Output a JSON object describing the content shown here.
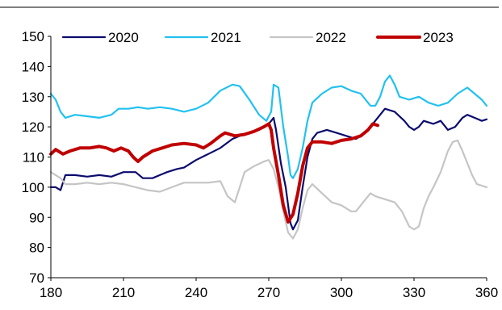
{
  "chart_data": {
    "type": "line",
    "title": "",
    "xlabel": "",
    "ylabel": "",
    "xlim": [
      180,
      360
    ],
    "ylim": [
      70,
      150
    ],
    "x_ticks": [
      180,
      210,
      240,
      270,
      300,
      330,
      360
    ],
    "y_ticks": [
      70,
      80,
      90,
      100,
      110,
      120,
      130,
      140,
      150
    ],
    "grid": false,
    "legend_position": "top",
    "series": [
      {
        "name": "2020",
        "color": "#0b0b6e",
        "width": 2.2,
        "points": [
          [
            180,
            100
          ],
          [
            182,
            100
          ],
          [
            184,
            99
          ],
          [
            186,
            104
          ],
          [
            190,
            104
          ],
          [
            195,
            103.5
          ],
          [
            200,
            104
          ],
          [
            205,
            103.5
          ],
          [
            210,
            105
          ],
          [
            215,
            105
          ],
          [
            218,
            103
          ],
          [
            222,
            103
          ],
          [
            225,
            104
          ],
          [
            228,
            105
          ],
          [
            232,
            106
          ],
          [
            235,
            106.5
          ],
          [
            240,
            109
          ],
          [
            245,
            111
          ],
          [
            250,
            113
          ],
          [
            255,
            116
          ],
          [
            258,
            117
          ],
          [
            262,
            118
          ],
          [
            266,
            119
          ],
          [
            270,
            121
          ],
          [
            272,
            123
          ],
          [
            273,
            119
          ],
          [
            275,
            108
          ],
          [
            277,
            100
          ],
          [
            279,
            88
          ],
          [
            280,
            86
          ],
          [
            282,
            89
          ],
          [
            284,
            100
          ],
          [
            286,
            110
          ],
          [
            288,
            116
          ],
          [
            290,
            118
          ],
          [
            294,
            119
          ],
          [
            298,
            118
          ],
          [
            302,
            117
          ],
          [
            306,
            116
          ],
          [
            310,
            118
          ],
          [
            312,
            120
          ],
          [
            316,
            124
          ],
          [
            318,
            126
          ],
          [
            322,
            125
          ],
          [
            326,
            122
          ],
          [
            328,
            120
          ],
          [
            330,
            119
          ],
          [
            332,
            120
          ],
          [
            334,
            122
          ],
          [
            338,
            121
          ],
          [
            341,
            122
          ],
          [
            344,
            119
          ],
          [
            347,
            120
          ],
          [
            350,
            123
          ],
          [
            352,
            124
          ],
          [
            355,
            123
          ],
          [
            358,
            122
          ],
          [
            360,
            122.5
          ]
        ]
      },
      {
        "name": "2021",
        "color": "#22c1ef",
        "width": 2.2,
        "points": [
          [
            180,
            131
          ],
          [
            182,
            129
          ],
          [
            184,
            125
          ],
          [
            186,
            123
          ],
          [
            190,
            124
          ],
          [
            195,
            123.5
          ],
          [
            200,
            123
          ],
          [
            205,
            124
          ],
          [
            208,
            126
          ],
          [
            212,
            126
          ],
          [
            216,
            126.5
          ],
          [
            220,
            126
          ],
          [
            225,
            126.5
          ],
          [
            230,
            126
          ],
          [
            235,
            125
          ],
          [
            240,
            126
          ],
          [
            245,
            128
          ],
          [
            250,
            132
          ],
          [
            255,
            134
          ],
          [
            258,
            133.5
          ],
          [
            262,
            129
          ],
          [
            266,
            124
          ],
          [
            269,
            122
          ],
          [
            271,
            125
          ],
          [
            272,
            134
          ],
          [
            274,
            133
          ],
          [
            276,
            120
          ],
          [
            278,
            110
          ],
          [
            279,
            104
          ],
          [
            280,
            103
          ],
          [
            282,
            106
          ],
          [
            284,
            113
          ],
          [
            286,
            122
          ],
          [
            288,
            128
          ],
          [
            292,
            131
          ],
          [
            296,
            133
          ],
          [
            300,
            133.5
          ],
          [
            304,
            132
          ],
          [
            308,
            131
          ],
          [
            312,
            127
          ],
          [
            314,
            127
          ],
          [
            316,
            130
          ],
          [
            318,
            135
          ],
          [
            320,
            137
          ],
          [
            322,
            134
          ],
          [
            324,
            130
          ],
          [
            328,
            129
          ],
          [
            332,
            130
          ],
          [
            336,
            128
          ],
          [
            340,
            127
          ],
          [
            344,
            128
          ],
          [
            348,
            131
          ],
          [
            352,
            133
          ],
          [
            355,
            131
          ],
          [
            358,
            129
          ],
          [
            360,
            127
          ]
        ]
      },
      {
        "name": "2022",
        "color": "#c5c5c5",
        "width": 2.2,
        "points": [
          [
            180,
            105
          ],
          [
            182,
            104
          ],
          [
            184,
            103
          ],
          [
            186,
            101
          ],
          [
            190,
            101
          ],
          [
            195,
            101.5
          ],
          [
            200,
            101
          ],
          [
            205,
            101.5
          ],
          [
            210,
            101
          ],
          [
            215,
            100
          ],
          [
            220,
            99
          ],
          [
            225,
            98.5
          ],
          [
            230,
            100
          ],
          [
            235,
            101.5
          ],
          [
            240,
            101.5
          ],
          [
            245,
            101.5
          ],
          [
            250,
            102
          ],
          [
            253,
            97
          ],
          [
            256,
            95
          ],
          [
            258,
            100
          ],
          [
            260,
            105
          ],
          [
            264,
            107
          ],
          [
            268,
            108.5
          ],
          [
            270,
            109
          ],
          [
            272,
            106
          ],
          [
            274,
            100
          ],
          [
            276,
            92
          ],
          [
            278,
            85
          ],
          [
            280,
            83
          ],
          [
            282,
            86
          ],
          [
            284,
            93
          ],
          [
            286,
            99
          ],
          [
            288,
            101
          ],
          [
            292,
            98
          ],
          [
            296,
            95
          ],
          [
            300,
            94
          ],
          [
            304,
            92
          ],
          [
            306,
            92
          ],
          [
            308,
            94
          ],
          [
            310,
            96
          ],
          [
            312,
            98
          ],
          [
            314,
            97
          ],
          [
            318,
            96
          ],
          [
            322,
            95
          ],
          [
            325,
            92
          ],
          [
            328,
            87
          ],
          [
            330,
            86
          ],
          [
            332,
            87
          ],
          [
            334,
            93
          ],
          [
            336,
            97
          ],
          [
            338,
            100
          ],
          [
            341,
            105
          ],
          [
            344,
            112
          ],
          [
            346,
            115
          ],
          [
            348,
            115.5
          ],
          [
            350,
            112
          ],
          [
            352,
            108
          ],
          [
            354,
            104
          ],
          [
            356,
            101
          ],
          [
            358,
            100.5
          ],
          [
            360,
            100
          ]
        ]
      },
      {
        "name": "2023",
        "color": "#c00000",
        "width": 4,
        "points": [
          [
            180,
            111
          ],
          [
            182,
            112.5
          ],
          [
            185,
            111
          ],
          [
            188,
            112
          ],
          [
            192,
            113
          ],
          [
            196,
            113
          ],
          [
            200,
            113.5
          ],
          [
            203,
            113
          ],
          [
            206,
            112
          ],
          [
            209,
            113
          ],
          [
            212,
            112
          ],
          [
            214,
            110
          ],
          [
            216,
            108.5
          ],
          [
            218,
            110
          ],
          [
            222,
            112
          ],
          [
            226,
            113
          ],
          [
            230,
            114
          ],
          [
            235,
            114.5
          ],
          [
            240,
            114
          ],
          [
            243,
            113
          ],
          [
            246,
            114.5
          ],
          [
            250,
            117
          ],
          [
            252,
            118
          ],
          [
            256,
            117
          ],
          [
            260,
            117.5
          ],
          [
            264,
            118.5
          ],
          [
            268,
            120
          ],
          [
            270,
            121
          ],
          [
            271,
            119
          ],
          [
            272,
            113
          ],
          [
            274,
            104
          ],
          [
            276,
            94
          ],
          [
            278,
            88.5
          ],
          [
            280,
            91
          ],
          [
            282,
            98
          ],
          [
            284,
            107
          ],
          [
            286,
            113
          ],
          [
            288,
            115
          ],
          [
            292,
            115
          ],
          [
            296,
            114.5
          ],
          [
            300,
            115.5
          ],
          [
            304,
            116
          ],
          [
            308,
            117
          ],
          [
            311,
            119
          ],
          [
            313,
            121
          ],
          [
            315,
            120.5
          ]
        ]
      }
    ]
  }
}
